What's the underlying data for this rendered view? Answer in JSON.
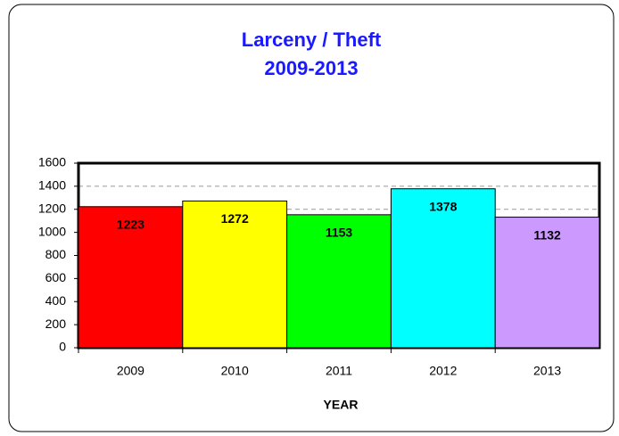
{
  "chart_data": {
    "type": "bar",
    "title": "Larceny / Theft",
    "subtitle": "2009-2013",
    "x_label": "YEAR",
    "categories": [
      "2009",
      "2010",
      "2011",
      "2012",
      "2013"
    ],
    "values": [
      1223,
      1272,
      1153,
      1378,
      1132
    ],
    "colors": [
      "#ff0000",
      "#ffff00",
      "#00ff00",
      "#00ffff",
      "#cc99ff"
    ],
    "ylim": [
      0,
      1600
    ],
    "yticks": [
      0,
      200,
      400,
      600,
      800,
      1000,
      1200,
      1400,
      1600
    ],
    "grid": true
  }
}
